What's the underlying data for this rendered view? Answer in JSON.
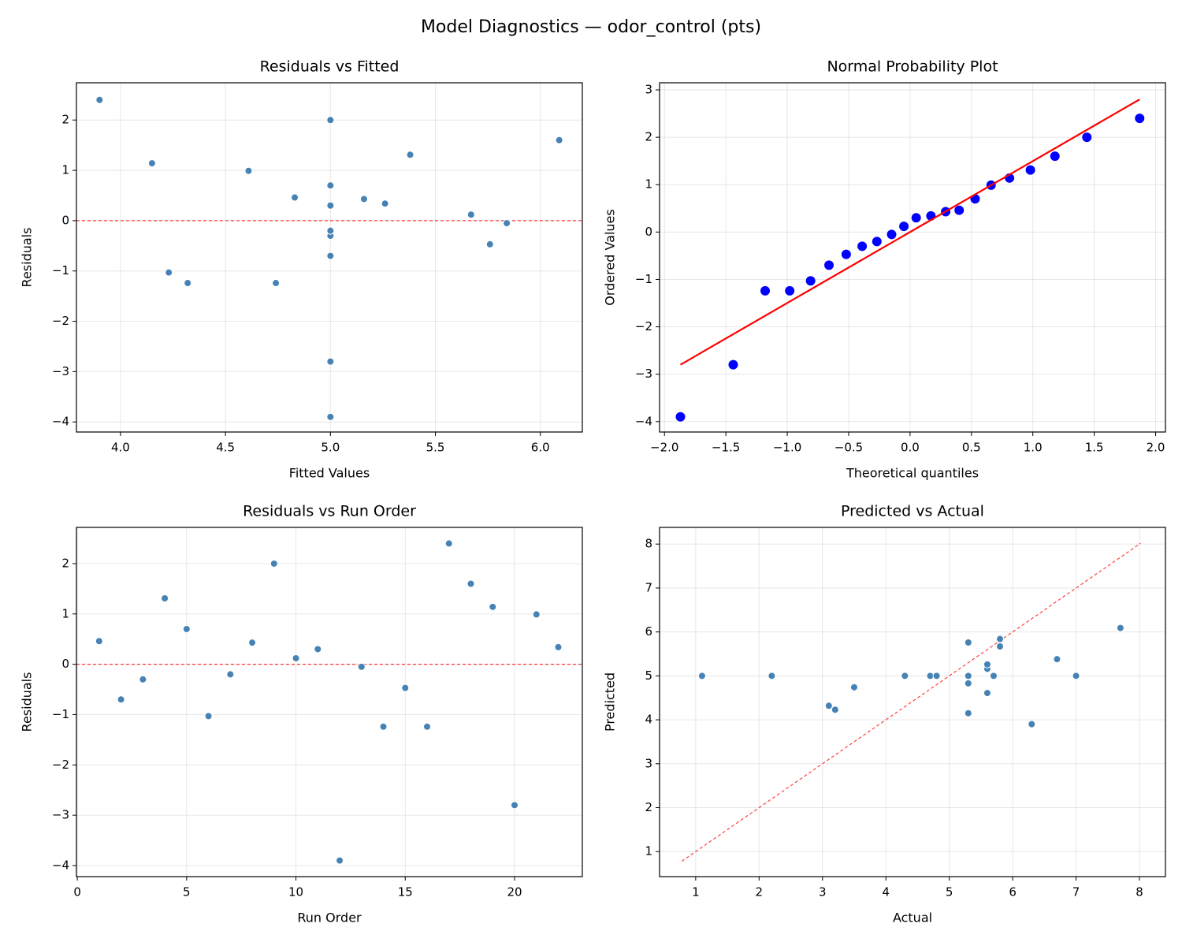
{
  "title": "Model Diagnostics — odor_control (pts)",
  "chart_data": [
    {
      "type": "scatter",
      "title": "Residuals vs Fitted",
      "xlabel": "Fitted Values",
      "ylabel": "Residuals",
      "x": [
        4.83,
        5.0,
        5.0,
        5.38,
        5.0,
        4.23,
        5.0,
        5.16,
        5.0,
        5.67,
        5.0,
        5.0,
        5.84,
        4.32,
        5.76,
        4.74,
        3.9,
        6.09,
        4.15,
        5.0,
        4.61,
        5.26
      ],
      "y": [
        0.46,
        -0.7,
        -0.3,
        1.31,
        0.7,
        -1.03,
        -0.2,
        0.43,
        2.0,
        0.12,
        0.3,
        -3.9,
        -0.05,
        -1.24,
        -0.47,
        -1.24,
        2.4,
        1.6,
        1.14,
        -2.8,
        0.99,
        0.34
      ],
      "color": "#4682b4",
      "marker_size": 4.5,
      "xlim": [
        3.79,
        6.2
      ],
      "ylim": [
        -4.2,
        2.74
      ],
      "xticks": [
        {
          "value": 4.0,
          "label": "4.0"
        },
        4.5,
        {
          "value": 5.0,
          "label": "5.0"
        },
        5.5,
        {
          "value": 6.0,
          "label": "6.0"
        }
      ],
      "yticks": [
        {
          "value": -4,
          "label": "−4"
        },
        {
          "value": -3,
          "label": "−3"
        },
        {
          "value": -2,
          "label": "−2"
        },
        {
          "value": -1,
          "label": "−1"
        },
        0,
        1,
        2
      ],
      "grid": true,
      "hline": 0,
      "line_color": "#ff0000",
      "line_style": "dashed"
    },
    {
      "type": "scatter",
      "title": "Normal Probability Plot",
      "xlabel": "Theoretical quantiles",
      "ylabel": "Ordered Values",
      "x": [
        -1.87,
        -1.44,
        -1.18,
        -0.98,
        -0.81,
        -0.66,
        -0.52,
        -0.39,
        -0.27,
        -0.15,
        -0.05,
        0.05,
        0.17,
        0.29,
        0.4,
        0.53,
        0.66,
        0.81,
        0.98,
        1.18,
        1.44,
        1.87
      ],
      "y": [
        -3.9,
        -2.8,
        -1.24,
        -1.24,
        -1.03,
        -0.7,
        -0.47,
        -0.3,
        -0.2,
        -0.05,
        0.12,
        0.3,
        0.34,
        0.43,
        0.46,
        0.7,
        0.99,
        1.14,
        1.31,
        1.6,
        2.0,
        2.4
      ],
      "color": "#0000ff",
      "marker_size": 6.5,
      "xlim": [
        -2.04,
        2.08
      ],
      "ylim": [
        -4.22,
        3.15
      ],
      "xticks": [
        {
          "value": -2.0,
          "label": "−2.0"
        },
        {
          "value": -1.5,
          "label": "−1.5"
        },
        {
          "value": -1.0,
          "label": "−1.0"
        },
        {
          "value": -0.5,
          "label": "−0.5"
        },
        {
          "value": 0.0,
          "label": "0.0"
        },
        0.5,
        {
          "value": 1.0,
          "label": "1.0"
        },
        1.5,
        {
          "value": 2.0,
          "label": "2.0"
        }
      ],
      "yticks": [
        {
          "value": -4,
          "label": "−4"
        },
        {
          "value": -3,
          "label": "−3"
        },
        {
          "value": -2,
          "label": "−2"
        },
        {
          "value": -1,
          "label": "−1"
        },
        0,
        1,
        2,
        3
      ],
      "grid": true,
      "line": {
        "x": [
          -1.87,
          1.87
        ],
        "y": [
          -2.8,
          2.8
        ]
      },
      "line_color": "#ff0000",
      "line_style": "solid"
    },
    {
      "type": "scatter",
      "title": "Residuals vs Run Order",
      "xlabel": "Run Order",
      "ylabel": "Residuals",
      "x": [
        1,
        2,
        3,
        4,
        5,
        6,
        7,
        8,
        9,
        10,
        11,
        12,
        13,
        14,
        15,
        16,
        17,
        18,
        19,
        20,
        21,
        22
      ],
      "y": [
        0.46,
        -0.7,
        -0.3,
        1.31,
        0.7,
        -1.03,
        -0.2,
        0.43,
        2.0,
        0.12,
        0.3,
        -3.9,
        -0.05,
        -1.24,
        -0.47,
        -1.24,
        2.4,
        1.6,
        1.14,
        -2.8,
        0.99,
        0.34
      ],
      "color": "#4682b4",
      "marker_size": 4.5,
      "xlim": [
        -0.04,
        23.1
      ],
      "ylim": [
        -4.22,
        2.72
      ],
      "xticks": [
        0,
        5,
        10,
        15,
        20
      ],
      "yticks": [
        {
          "value": -4,
          "label": "−4"
        },
        {
          "value": -3,
          "label": "−3"
        },
        {
          "value": -2,
          "label": "−2"
        },
        {
          "value": -1,
          "label": "−1"
        },
        0,
        1,
        2
      ],
      "grid": true,
      "hline": 0,
      "line_color": "#ff0000",
      "line_style": "dashed"
    },
    {
      "type": "scatter",
      "title": "Predicted vs Actual",
      "xlabel": "Actual",
      "ylabel": "Predicted",
      "x": [
        5.3,
        4.3,
        4.7,
        6.7,
        5.7,
        3.2,
        4.8,
        5.6,
        7.0,
        5.8,
        5.3,
        1.1,
        5.8,
        3.1,
        5.3,
        3.5,
        6.3,
        7.7,
        5.3,
        2.2,
        5.6,
        5.6
      ],
      "y": [
        4.83,
        5.0,
        5.0,
        5.38,
        5.0,
        4.23,
        5.0,
        5.16,
        5.0,
        5.67,
        5.0,
        5.0,
        5.84,
        4.32,
        5.76,
        4.74,
        3.9,
        6.09,
        4.15,
        5.0,
        4.61,
        5.26
      ],
      "color": "#4682b4",
      "marker_size": 4.5,
      "xlim": [
        0.43,
        8.41
      ],
      "ylim": [
        0.43,
        8.38
      ],
      "xticks": [
        1,
        2,
        3,
        4,
        5,
        6,
        7,
        8
      ],
      "yticks": [
        1,
        2,
        3,
        4,
        5,
        6,
        7,
        8
      ],
      "grid": true,
      "line": {
        "x": [
          0.78,
          8.02
        ],
        "y": [
          0.78,
          8.02
        ]
      },
      "line_color": "#ff0000",
      "line_style": "dashed"
    }
  ]
}
